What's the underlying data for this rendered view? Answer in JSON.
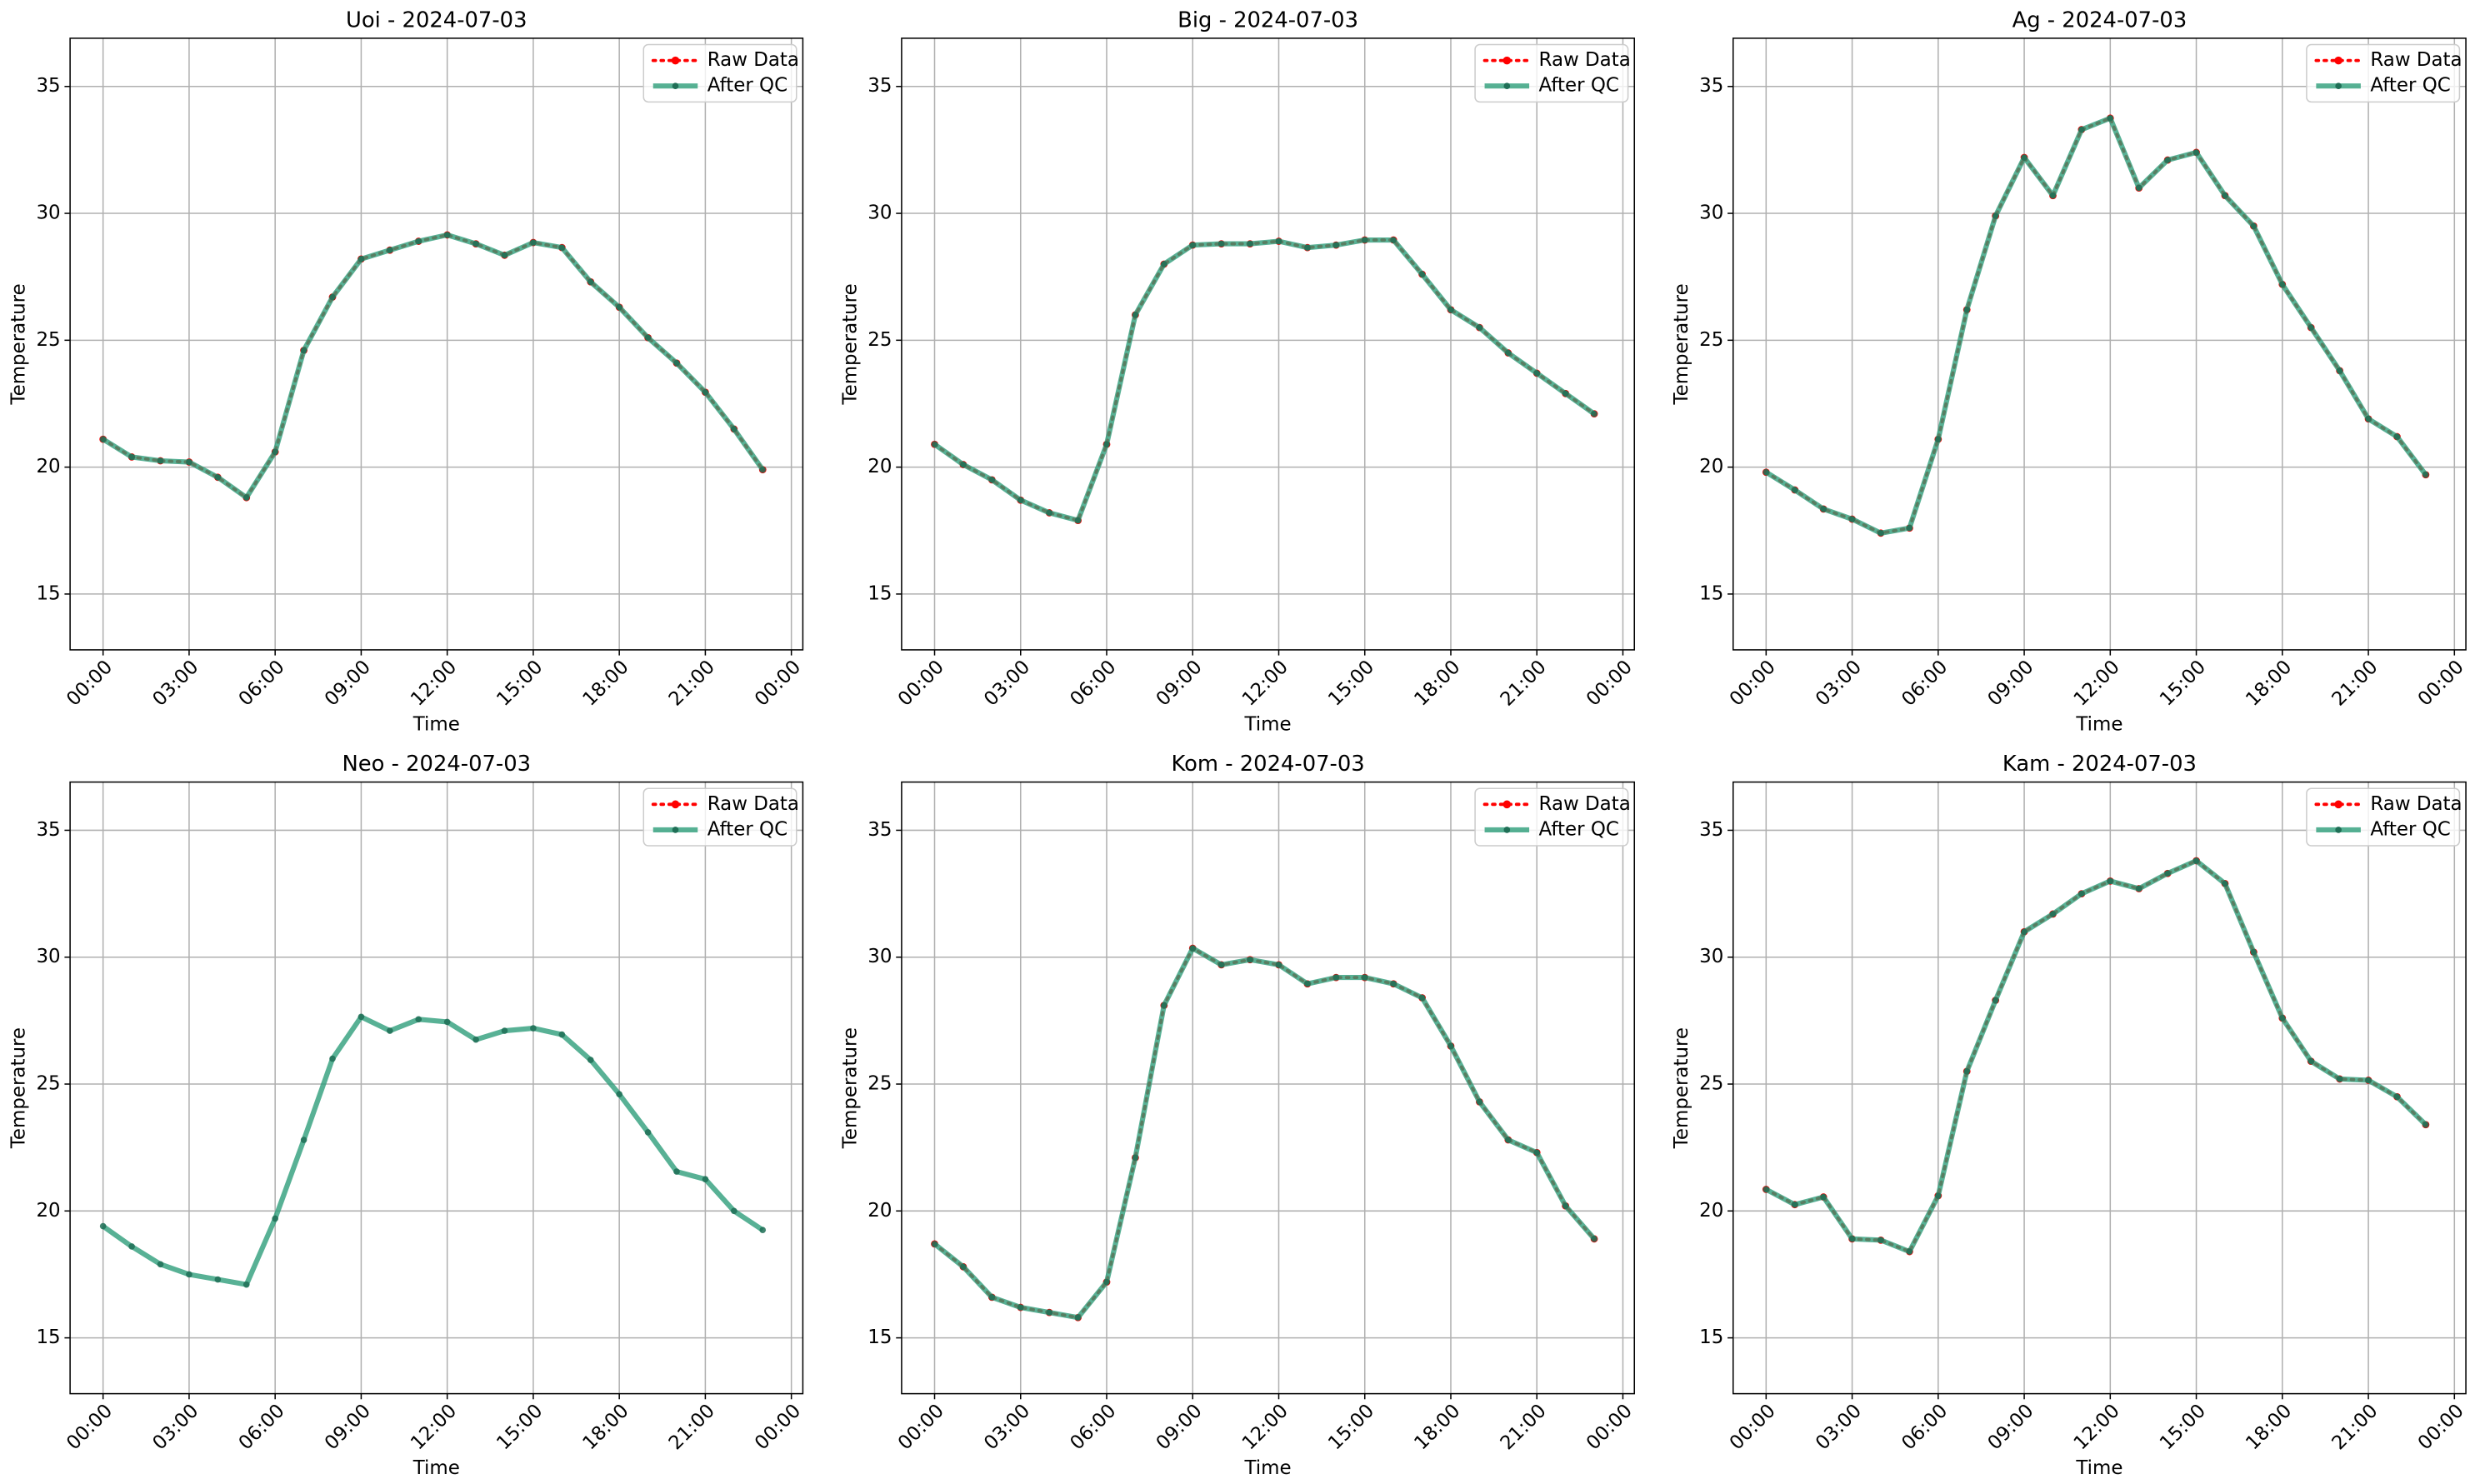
{
  "chart_data": [
    {
      "type": "line",
      "title": "Uoi - 2024-07-03",
      "xlabel": "Time",
      "ylabel": "Temperature",
      "x": [
        0,
        1,
        2,
        3,
        4,
        5,
        6,
        7,
        8,
        9,
        10,
        11,
        12,
        13,
        14,
        15,
        16,
        17,
        18,
        19,
        20,
        21,
        22,
        23
      ],
      "series": [
        {
          "name": "Raw Data",
          "color": "#ff0000",
          "values": [
            21.1,
            20.4,
            20.25,
            20.2,
            19.6,
            18.8,
            20.6,
            24.6,
            26.7,
            28.2,
            28.55,
            28.9,
            29.15,
            28.8,
            28.35,
            28.85,
            28.65,
            27.3,
            26.3,
            25.1,
            24.1,
            22.95,
            21.5,
            19.9
          ]
        },
        {
          "name": "After QC",
          "color": "#2e9e7a",
          "values": [
            21.1,
            20.4,
            20.25,
            20.2,
            19.6,
            18.8,
            20.6,
            24.6,
            26.7,
            28.2,
            28.55,
            28.9,
            29.15,
            28.8,
            28.35,
            28.85,
            28.65,
            27.3,
            26.3,
            25.1,
            24.1,
            22.95,
            21.5,
            19.9
          ]
        }
      ],
      "xlim": [
        -1.15,
        24.4
      ],
      "ylim": [
        12.8,
        36.9
      ],
      "xticks": [
        {
          "value": 0,
          "label": "00:00"
        },
        {
          "value": 3,
          "label": "03:00"
        },
        {
          "value": 6,
          "label": "06:00"
        },
        {
          "value": 9,
          "label": "09:00"
        },
        {
          "value": 12,
          "label": "12:00"
        },
        {
          "value": 15,
          "label": "15:00"
        },
        {
          "value": 18,
          "label": "18:00"
        },
        {
          "value": 21,
          "label": "21:00"
        },
        {
          "value": 24,
          "label": "00:00"
        }
      ],
      "yticks": [
        15,
        20,
        25,
        30,
        35
      ],
      "grid": true,
      "legend": "upper right"
    },
    {
      "type": "line",
      "title": "Big - 2024-07-03",
      "xlabel": "Time",
      "ylabel": "Temperature",
      "x": [
        0,
        1,
        2,
        3,
        4,
        5,
        6,
        7,
        8,
        9,
        10,
        11,
        12,
        13,
        14,
        15,
        16,
        17,
        18,
        19,
        20,
        21,
        22,
        23
      ],
      "series": [
        {
          "name": "Raw Data",
          "color": "#ff0000",
          "values": [
            20.9,
            20.1,
            19.5,
            18.7,
            18.2,
            17.9,
            20.9,
            26.0,
            28.0,
            28.75,
            28.8,
            28.8,
            28.9,
            28.65,
            28.75,
            28.95,
            28.95,
            27.6,
            26.2,
            25.5,
            24.5,
            23.7,
            22.9,
            22.1
          ]
        },
        {
          "name": "After QC",
          "color": "#2e9e7a",
          "values": [
            20.9,
            20.1,
            19.5,
            18.7,
            18.2,
            17.9,
            20.9,
            26.0,
            28.0,
            28.75,
            28.8,
            28.8,
            28.9,
            28.65,
            28.75,
            28.95,
            28.95,
            27.6,
            26.2,
            25.5,
            24.5,
            23.7,
            22.9,
            22.1
          ]
        }
      ],
      "xlim": [
        -1.15,
        24.4
      ],
      "ylim": [
        12.8,
        36.9
      ],
      "xticks": [
        {
          "value": 0,
          "label": "00:00"
        },
        {
          "value": 3,
          "label": "03:00"
        },
        {
          "value": 6,
          "label": "06:00"
        },
        {
          "value": 9,
          "label": "09:00"
        },
        {
          "value": 12,
          "label": "12:00"
        },
        {
          "value": 15,
          "label": "15:00"
        },
        {
          "value": 18,
          "label": "18:00"
        },
        {
          "value": 21,
          "label": "21:00"
        },
        {
          "value": 24,
          "label": "00:00"
        }
      ],
      "yticks": [
        15,
        20,
        25,
        30,
        35
      ],
      "grid": true,
      "legend": "upper right"
    },
    {
      "type": "line",
      "title": "Ag - 2024-07-03",
      "xlabel": "Time",
      "ylabel": "Temperature",
      "x": [
        0,
        1,
        2,
        3,
        4,
        5,
        6,
        7,
        8,
        9,
        10,
        11,
        12,
        13,
        14,
        15,
        16,
        17,
        18,
        19,
        20,
        21,
        22,
        23
      ],
      "series": [
        {
          "name": "Raw Data",
          "color": "#ff0000",
          "values": [
            19.8,
            19.1,
            18.35,
            17.95,
            17.4,
            17.6,
            21.1,
            26.2,
            29.9,
            32.2,
            30.7,
            33.3,
            33.75,
            31.0,
            32.1,
            32.4,
            30.7,
            29.5,
            27.2,
            25.5,
            23.8,
            21.9,
            21.2,
            19.7
          ]
        },
        {
          "name": "After QC",
          "color": "#2e9e7a",
          "values": [
            19.8,
            19.1,
            18.35,
            17.95,
            17.4,
            17.6,
            21.1,
            26.2,
            29.9,
            32.2,
            30.7,
            33.3,
            33.75,
            31.0,
            32.1,
            32.4,
            30.7,
            29.5,
            27.2,
            25.5,
            23.8,
            21.9,
            21.2,
            19.7
          ]
        }
      ],
      "xlim": [
        -1.15,
        24.4
      ],
      "ylim": [
        12.8,
        36.9
      ],
      "xticks": [
        {
          "value": 0,
          "label": "00:00"
        },
        {
          "value": 3,
          "label": "03:00"
        },
        {
          "value": 6,
          "label": "06:00"
        },
        {
          "value": 9,
          "label": "09:00"
        },
        {
          "value": 12,
          "label": "12:00"
        },
        {
          "value": 15,
          "label": "15:00"
        },
        {
          "value": 18,
          "label": "18:00"
        },
        {
          "value": 21,
          "label": "21:00"
        },
        {
          "value": 24,
          "label": "00:00"
        }
      ],
      "yticks": [
        15,
        20,
        25,
        30,
        35
      ],
      "grid": true,
      "legend": "upper right"
    },
    {
      "type": "line",
      "title": "Neo - 2024-07-03",
      "xlabel": "Time",
      "ylabel": "Temperature",
      "x": [
        0,
        1,
        2,
        3,
        4,
        5,
        6,
        7,
        8,
        9,
        10,
        11,
        12,
        13,
        14,
        15,
        16,
        17,
        18,
        19,
        20,
        21,
        22,
        23
      ],
      "series": [
        {
          "name": "Raw Data",
          "color": "#ff0000",
          "values": [
            null,
            null,
            null,
            null,
            null,
            null,
            null,
            null,
            null,
            null,
            null,
            null,
            null,
            null,
            null,
            null,
            null,
            null,
            null,
            null,
            null,
            null,
            null,
            null
          ]
        },
        {
          "name": "After QC",
          "color": "#2e9e7a",
          "values": [
            19.4,
            18.6,
            17.9,
            17.5,
            17.3,
            17.1,
            19.7,
            22.8,
            26.0,
            27.65,
            27.1,
            27.55,
            27.45,
            26.75,
            27.1,
            27.2,
            26.95,
            25.95,
            24.6,
            23.1,
            21.55,
            21.25,
            20.0,
            19.25
          ]
        }
      ],
      "xlim": [
        -1.15,
        24.4
      ],
      "ylim": [
        12.8,
        36.9
      ],
      "xticks": [
        {
          "value": 0,
          "label": "00:00"
        },
        {
          "value": 3,
          "label": "03:00"
        },
        {
          "value": 6,
          "label": "06:00"
        },
        {
          "value": 9,
          "label": "09:00"
        },
        {
          "value": 12,
          "label": "12:00"
        },
        {
          "value": 15,
          "label": "15:00"
        },
        {
          "value": 18,
          "label": "18:00"
        },
        {
          "value": 21,
          "label": "21:00"
        },
        {
          "value": 24,
          "label": "00:00"
        }
      ],
      "yticks": [
        15,
        20,
        25,
        30,
        35
      ],
      "grid": true,
      "legend": "upper right"
    },
    {
      "type": "line",
      "title": "Kom - 2024-07-03",
      "xlabel": "Time",
      "ylabel": "Temperature",
      "x": [
        0,
        1,
        2,
        3,
        4,
        5,
        6,
        7,
        8,
        9,
        10,
        11,
        12,
        13,
        14,
        15,
        16,
        17,
        18,
        19,
        20,
        21,
        22,
        23
      ],
      "series": [
        {
          "name": "Raw Data",
          "color": "#ff0000",
          "values": [
            18.7,
            17.8,
            16.6,
            16.2,
            16.0,
            15.8,
            17.2,
            22.1,
            28.1,
            30.35,
            29.7,
            29.9,
            29.7,
            28.95,
            29.2,
            29.2,
            28.95,
            28.4,
            26.5,
            24.3,
            22.8,
            22.3,
            20.2,
            18.9
          ]
        },
        {
          "name": "After QC",
          "color": "#2e9e7a",
          "values": [
            18.7,
            17.8,
            16.6,
            16.2,
            16.0,
            15.8,
            17.2,
            22.1,
            28.1,
            30.35,
            29.7,
            29.9,
            29.7,
            28.95,
            29.2,
            29.2,
            28.95,
            28.4,
            26.5,
            24.3,
            22.8,
            22.3,
            20.2,
            18.9
          ]
        }
      ],
      "xlim": [
        -1.15,
        24.4
      ],
      "ylim": [
        12.8,
        36.9
      ],
      "xticks": [
        {
          "value": 0,
          "label": "00:00"
        },
        {
          "value": 3,
          "label": "03:00"
        },
        {
          "value": 6,
          "label": "06:00"
        },
        {
          "value": 9,
          "label": "09:00"
        },
        {
          "value": 12,
          "label": "12:00"
        },
        {
          "value": 15,
          "label": "15:00"
        },
        {
          "value": 18,
          "label": "18:00"
        },
        {
          "value": 21,
          "label": "21:00"
        },
        {
          "value": 24,
          "label": "00:00"
        }
      ],
      "yticks": [
        15,
        20,
        25,
        30,
        35
      ],
      "grid": true,
      "legend": "upper right"
    },
    {
      "type": "line",
      "title": "Kam - 2024-07-03",
      "xlabel": "Time",
      "ylabel": "Temperature",
      "x": [
        0,
        1,
        2,
        3,
        4,
        5,
        6,
        7,
        8,
        9,
        10,
        11,
        12,
        13,
        14,
        15,
        16,
        17,
        18,
        19,
        20,
        21,
        22,
        23
      ],
      "series": [
        {
          "name": "Raw Data",
          "color": "#ff0000",
          "values": [
            20.85,
            20.25,
            20.55,
            18.9,
            18.85,
            18.4,
            20.6,
            25.5,
            28.3,
            31.0,
            31.7,
            32.5,
            33.0,
            32.7,
            33.3,
            33.8,
            32.9,
            30.2,
            27.6,
            25.9,
            25.2,
            25.15,
            24.5,
            23.4
          ]
        },
        {
          "name": "After QC",
          "color": "#2e9e7a",
          "values": [
            20.85,
            20.25,
            20.55,
            18.9,
            18.85,
            18.4,
            20.6,
            25.5,
            28.3,
            31.0,
            31.7,
            32.5,
            33.0,
            32.7,
            33.3,
            33.8,
            32.9,
            30.2,
            27.6,
            25.9,
            25.2,
            25.15,
            24.5,
            23.4
          ]
        }
      ],
      "xlim": [
        -1.15,
        24.4
      ],
      "ylim": [
        12.8,
        36.9
      ],
      "xticks": [
        {
          "value": 0,
          "label": "00:00"
        },
        {
          "value": 3,
          "label": "03:00"
        },
        {
          "value": 6,
          "label": "06:00"
        },
        {
          "value": 9,
          "label": "09:00"
        },
        {
          "value": 12,
          "label": "12:00"
        },
        {
          "value": 15,
          "label": "15:00"
        },
        {
          "value": 18,
          "label": "18:00"
        },
        {
          "value": 21,
          "label": "21:00"
        },
        {
          "value": 24,
          "label": "00:00"
        }
      ],
      "yticks": [
        15,
        20,
        25,
        30,
        35
      ],
      "grid": true,
      "legend": "upper right"
    }
  ]
}
